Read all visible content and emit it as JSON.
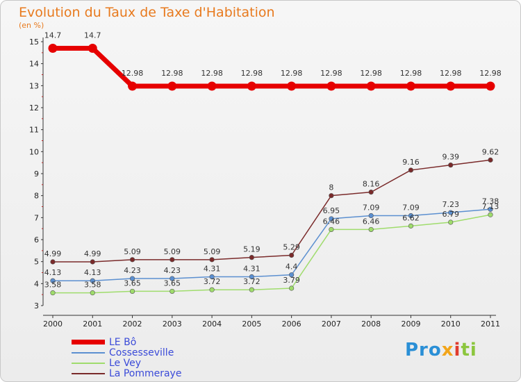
{
  "title": "Evolution du Taux de Taxe d'Habitation",
  "subtitle": "(en %)",
  "chart_data": {
    "type": "line",
    "x": [
      "2000",
      "2001",
      "2002",
      "2003",
      "2004",
      "2005",
      "2006",
      "2007",
      "2008",
      "2009",
      "2010",
      "2011"
    ],
    "ylim": [
      3,
      15
    ],
    "yticks": [
      "3",
      "4",
      "5",
      "6",
      "7",
      "8",
      "9",
      "10",
      "11",
      "12",
      "13",
      "14",
      "15"
    ],
    "grid": false,
    "legend_position": "bottom-left",
    "series": [
      {
        "name": "LE Bô",
        "color": "#e60000",
        "values": [
          14.7,
          14.7,
          12.98,
          12.98,
          12.98,
          12.98,
          12.98,
          12.98,
          12.98,
          12.98,
          12.98,
          12.98
        ],
        "labels": [
          "14.7",
          "14.7",
          "12.98",
          "12.98",
          "12.98",
          "12.98",
          "12.98",
          "12.98",
          "12.98",
          "12.98",
          "12.98",
          "12.98"
        ]
      },
      {
        "name": "Cossesseville",
        "color": "#5b8fd0",
        "values": [
          4.13,
          4.13,
          4.23,
          4.23,
          4.31,
          4.31,
          4.4,
          6.95,
          7.09,
          7.09,
          7.23,
          7.38
        ],
        "labels": [
          "4.13",
          "4.13",
          "4.23",
          "4.23",
          "4.31",
          "4.31",
          "4.4",
          "6.95",
          "7.09",
          "7.09",
          "7.23",
          "7.38"
        ]
      },
      {
        "name": "Le Vey",
        "color": "#9fdc6c",
        "values": [
          3.58,
          3.58,
          3.65,
          3.65,
          3.72,
          3.72,
          3.79,
          6.46,
          6.46,
          6.62,
          6.79,
          7.13
        ],
        "labels": [
          "3.58",
          "3.58",
          "3.65",
          "3.65",
          "3.72",
          "3.72",
          "3.79",
          "6.46",
          "6.46",
          "6.62",
          "6.79",
          "7.13"
        ]
      },
      {
        "name": "La Pommeraye",
        "color": "#7a2a2a",
        "values": [
          4.99,
          4.99,
          5.09,
          5.09,
          5.09,
          5.19,
          5.29,
          8.0,
          8.16,
          9.16,
          9.39,
          9.62
        ],
        "labels": [
          "4.99",
          "4.99",
          "5.09",
          "5.09",
          "5.09",
          "5.19",
          "5.29",
          "8",
          "8.16",
          "9.16",
          "9.39",
          "9.62"
        ]
      }
    ]
  },
  "logo": {
    "p1": "Pro",
    "p2": "x",
    "p3": "i",
    "p4": "ti"
  }
}
